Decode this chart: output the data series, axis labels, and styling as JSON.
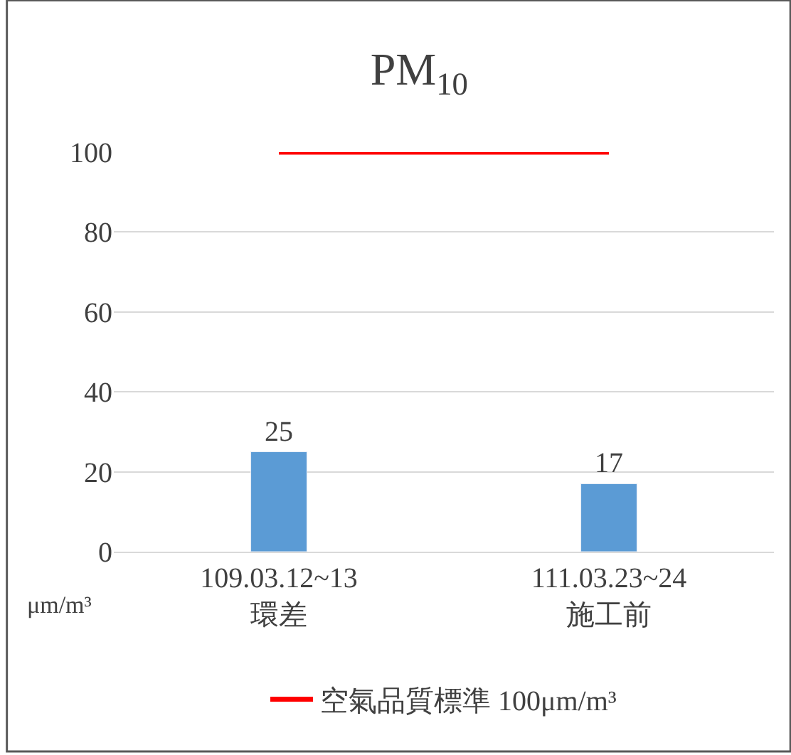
{
  "chart_data": {
    "type": "bar",
    "title": "PM$_{10}$",
    "categories": [
      "109.03.12~13\n環差",
      "111.03.23~24\n施工前"
    ],
    "series": [
      {
        "color": "#5b9bd5",
        "values": [
          25,
          17
        ],
        "value_labels": [
          "25",
          "17"
        ]
      },
      {
        "type": "line",
        "name": "空氣品質標準 100μm/m³",
        "color": "#ff0000",
        "values": [
          100,
          100
        ],
        "marker": "none"
      }
    ],
    "ylim": [
      0,
      100
    ],
    "yticks": [
      0,
      20,
      40,
      60,
      80,
      100
    ],
    "grid": "y",
    "legend": "bottom",
    "annotations": [
      "μm/m³"
    ]
  }
}
